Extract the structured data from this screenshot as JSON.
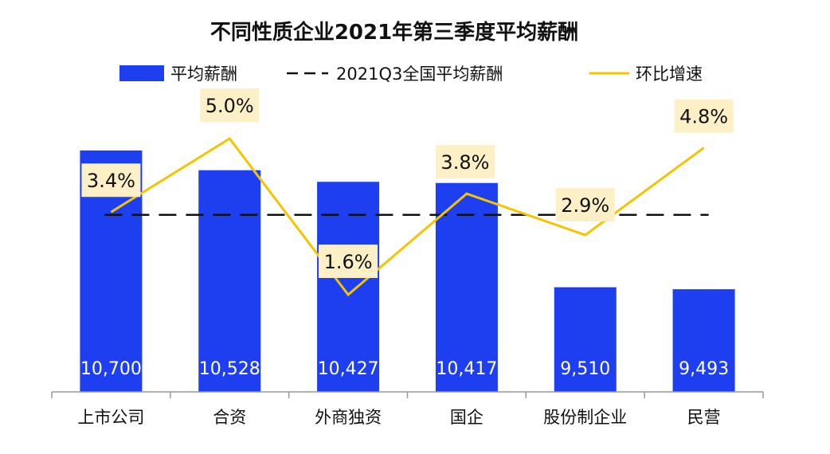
{
  "chart_data": {
    "type": "bar",
    "title": "不同性质企业2021年第三季度平均薪酬",
    "categories": [
      "上市公司",
      "合资",
      "外商独资",
      "国企",
      "股份制企业",
      "民营"
    ],
    "series": [
      {
        "name": "平均薪酬",
        "type": "bar",
        "values": [
          10700,
          10528,
          10427,
          10417,
          9510,
          9493
        ],
        "labels": [
          "10,700",
          "10,528",
          "10,427",
          "10,417",
          "9,510",
          "9,493"
        ],
        "color": "#1e3ff0"
      },
      {
        "name": "2021Q3全国平均薪酬",
        "type": "reference-line",
        "value": 10140,
        "color": "#111111"
      },
      {
        "name": "环比增速",
        "type": "line",
        "values": [
          3.4,
          5.0,
          1.6,
          3.8,
          2.9,
          4.8
        ],
        "labels": [
          "3.4%",
          "5.0%",
          "1.6%",
          "3.8%",
          "2.9%",
          "4.8%"
        ],
        "color": "#f5c400"
      }
    ],
    "axes": {
      "bar_range": [
        8600,
        10900
      ],
      "growth_range": [
        -4.0,
        5.8
      ]
    },
    "grid": false,
    "legend_position": "top",
    "label_box_color": "#fdf0c6"
  }
}
